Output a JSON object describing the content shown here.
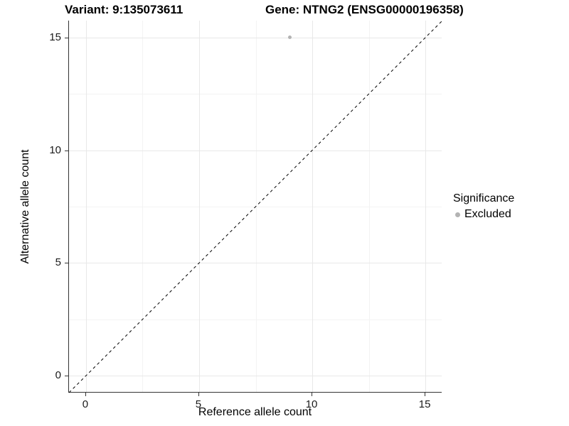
{
  "chart_data": {
    "type": "scatter",
    "title_left": "Variant: 9:135073611",
    "title_right": "Gene: NTNG2 (ENSG00000196358)",
    "xlabel": "Reference allele count",
    "ylabel": "Alternative allele count",
    "xlim": [
      -0.75,
      15.75
    ],
    "ylim": [
      -0.75,
      15.75
    ],
    "x_ticks": [
      0,
      5,
      10,
      15
    ],
    "y_ticks": [
      0,
      5,
      10,
      15
    ],
    "x_minor_ticks": [
      2.5,
      7.5,
      12.5
    ],
    "y_minor_ticks": [
      2.5,
      7.5,
      12.5
    ],
    "grid": true,
    "points": [
      {
        "x": 9,
        "y": 15,
        "series": "Excluded"
      }
    ],
    "reference_line": {
      "slope": 1,
      "intercept": 0,
      "style": "dashed",
      "color": "#000000"
    },
    "legend": {
      "title": "Significance",
      "position": "right",
      "items": [
        {
          "label": "Excluded",
          "color": "#b3b3b3"
        }
      ]
    },
    "colors": {
      "point": "#b3b3b3",
      "grid_major": "#e8e8e8",
      "grid_minor": "#f3f3f3",
      "axis_line": "#333333",
      "tick_label": "#1a1a1a"
    }
  }
}
